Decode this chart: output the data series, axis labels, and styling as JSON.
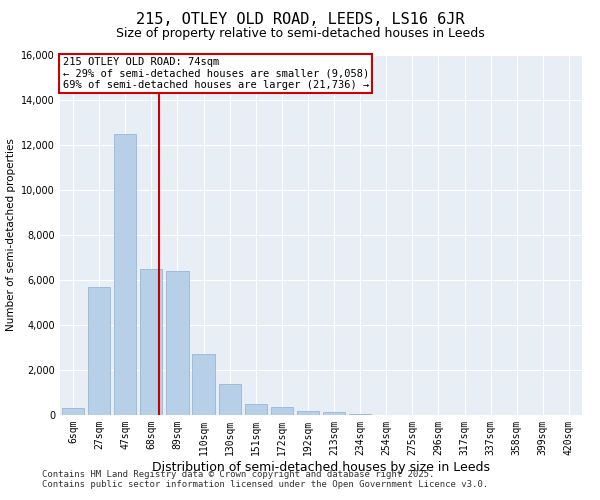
{
  "title": "215, OTLEY OLD ROAD, LEEDS, LS16 6JR",
  "subtitle": "Size of property relative to semi-detached houses in Leeds",
  "xlabel": "Distribution of semi-detached houses by size in Leeds",
  "ylabel": "Number of semi-detached properties",
  "categories": [
    "6sqm",
    "27sqm",
    "47sqm",
    "68sqm",
    "89sqm",
    "110sqm",
    "130sqm",
    "151sqm",
    "172sqm",
    "192sqm",
    "213sqm",
    "234sqm",
    "254sqm",
    "275sqm",
    "296sqm",
    "317sqm",
    "337sqm",
    "358sqm",
    "399sqm",
    "420sqm"
  ],
  "values": [
    300,
    5700,
    12500,
    6500,
    6400,
    2700,
    1400,
    500,
    350,
    200,
    120,
    50,
    10,
    0,
    0,
    0,
    0,
    0,
    0,
    0
  ],
  "bar_color": "#b8cfe8",
  "bar_edge_color": "#8aafd4",
  "vline_color": "#cc0000",
  "annotation_title": "215 OTLEY OLD ROAD: 74sqm",
  "annotation_line1": "← 29% of semi-detached houses are smaller (9,058)",
  "annotation_line2": "69% of semi-detached houses are larger (21,736) →",
  "annotation_box_color": "#cc0000",
  "ylim": [
    0,
    16000
  ],
  "yticks": [
    0,
    2000,
    4000,
    6000,
    8000,
    10000,
    12000,
    14000,
    16000
  ],
  "background_color": "#e8eef6",
  "footnote1": "Contains HM Land Registry data © Crown copyright and database right 2025.",
  "footnote2": "Contains public sector information licensed under the Open Government Licence v3.0.",
  "title_fontsize": 11,
  "subtitle_fontsize": 9,
  "xlabel_fontsize": 9,
  "ylabel_fontsize": 7.5,
  "tick_fontsize": 7,
  "annotation_fontsize": 7.5,
  "footnote_fontsize": 6.5
}
